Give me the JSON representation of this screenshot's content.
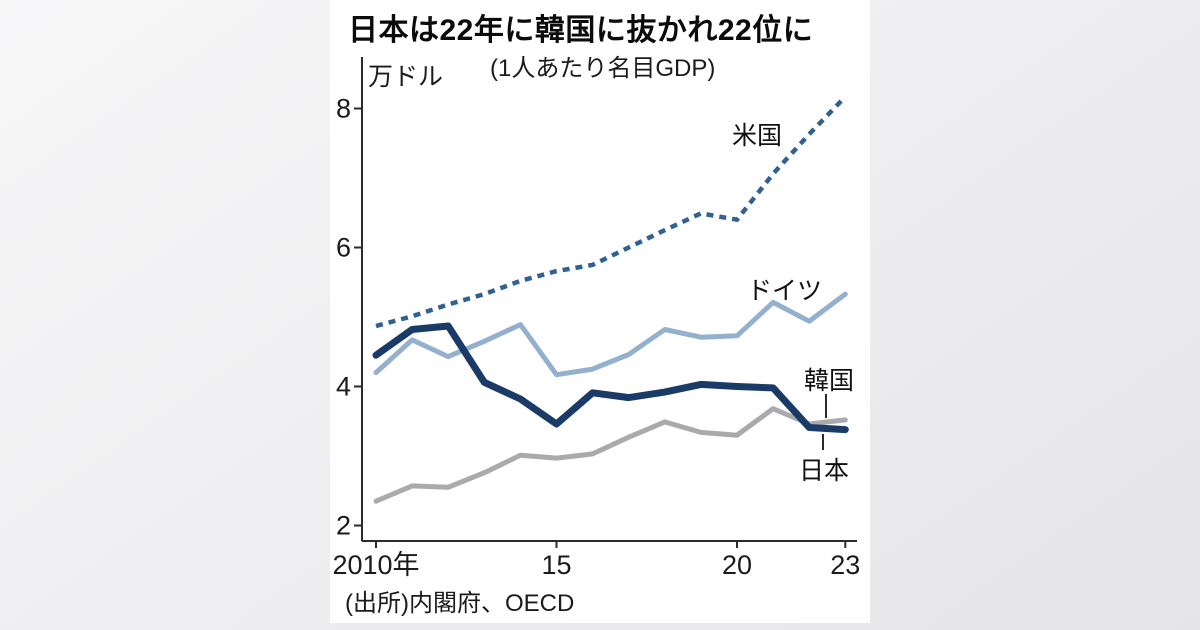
{
  "card": {
    "source": "(出所)内閣府、OECD"
  },
  "chart_data": {
    "type": "line",
    "title": "日本は22年に韓国に抜かれ22位に",
    "subtitle": "(1人あたり名目GDP)",
    "ylabel": "万ドル",
    "xlabel": "",
    "grid": false,
    "legend_position": "inline-labels-right",
    "x": [
      2010,
      2011,
      2012,
      2013,
      2014,
      2015,
      2016,
      2017,
      2018,
      2019,
      2020,
      2021,
      2022,
      2023
    ],
    "x_ticks": [
      {
        "label": "2010年",
        "year": 2010
      },
      {
        "label": "15",
        "year": 2015
      },
      {
        "label": "20",
        "year": 2020
      },
      {
        "label": "23",
        "year": 2023
      }
    ],
    "y_ticks": [
      2,
      4,
      6,
      8
    ],
    "ylim": [
      1.8,
      8.7
    ],
    "xlim": [
      2010,
      2023
    ],
    "series": [
      {
        "name": "米国",
        "style": "dotted",
        "color": "#2f6191",
        "width": 4.5,
        "values": [
          4.87,
          5.01,
          5.18,
          5.33,
          5.52,
          5.66,
          5.75,
          6.0,
          6.25,
          6.49,
          6.4,
          7.06,
          7.63,
          8.17
        ]
      },
      {
        "name": "ドイツ",
        "style": "solid",
        "color": "#93b1ce",
        "width": 5,
        "values": [
          4.2,
          4.67,
          4.43,
          4.65,
          4.89,
          4.17,
          4.25,
          4.46,
          4.82,
          4.71,
          4.73,
          5.21,
          4.94,
          5.33
        ]
      },
      {
        "name": "韓国",
        "style": "solid",
        "color": "#a8aaac",
        "width": 5,
        "values": [
          2.35,
          2.57,
          2.55,
          2.76,
          3.01,
          2.97,
          3.03,
          3.27,
          3.49,
          3.34,
          3.3,
          3.68,
          3.46,
          3.52
        ]
      },
      {
        "name": "日本",
        "style": "solid",
        "color": "#1a3a68",
        "width": 7,
        "values": [
          4.45,
          4.82,
          4.87,
          4.06,
          3.82,
          3.46,
          3.91,
          3.84,
          3.92,
          4.03,
          4.0,
          3.98,
          3.41,
          3.38
        ]
      }
    ],
    "axis_color": "#2b2b2b",
    "tick_label_color": "#1b1b1b",
    "source": "(出所)内閣府、OECD"
  }
}
